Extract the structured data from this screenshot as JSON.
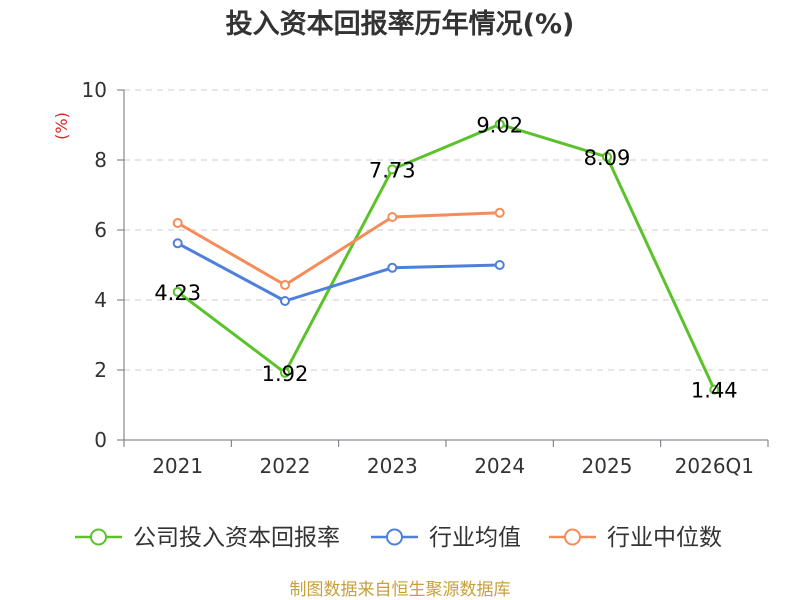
{
  "chart_data": {
    "type": "line",
    "title": "投入资本回报率历年情况(%)",
    "xlabel": "",
    "ylabel": "(%)",
    "ylabel_color": "#e02020",
    "categories": [
      "2021",
      "2022",
      "2023",
      "2024",
      "2025",
      "2026Q1"
    ],
    "ylim": [
      0,
      10
    ],
    "yticks": [
      0,
      2,
      4,
      6,
      8,
      10
    ],
    "grid": true,
    "legend": "bottom",
    "series": [
      {
        "name": "公司投入资本回报率",
        "color": "#5bc22b",
        "show_labels": true,
        "values": [
          4.23,
          1.92,
          7.73,
          9.02,
          8.09,
          1.44
        ]
      },
      {
        "name": "行业均值",
        "color": "#4f7fdc",
        "show_labels": false,
        "values": [
          5.62,
          3.97,
          4.92,
          5.0,
          null,
          null
        ]
      },
      {
        "name": "行业中位数",
        "color": "#f58c5a",
        "show_labels": false,
        "values": [
          6.2,
          4.43,
          6.37,
          6.49,
          null,
          null
        ]
      }
    ]
  },
  "source": {
    "text": "制图数据来自恒生聚源数据库",
    "color": "#c8a03c"
  }
}
